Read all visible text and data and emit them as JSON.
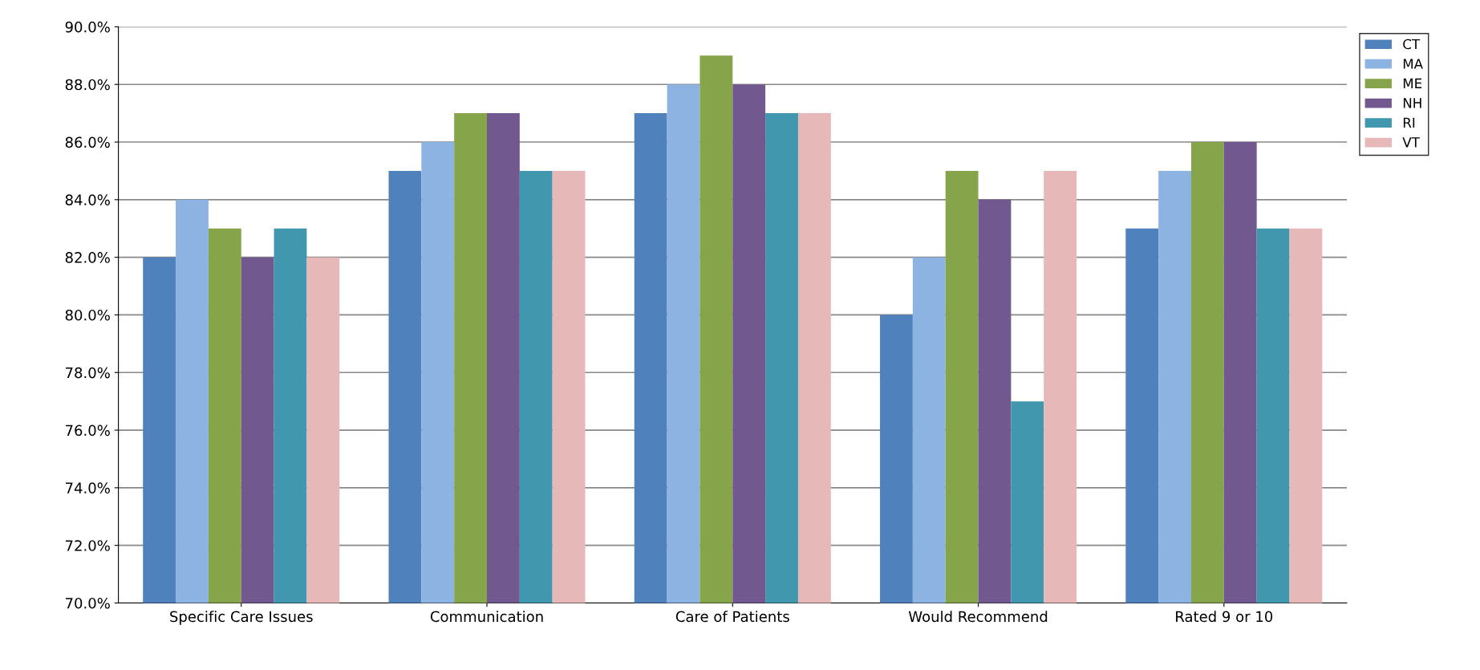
{
  "chart_data": {
    "type": "bar",
    "categories": [
      "Specific Care Issues",
      "Communication",
      "Care of Patients",
      "Would Recommend",
      "Rated 9 or 10"
    ],
    "series": [
      {
        "name": "CT",
        "color": "#4f81bd",
        "values": [
          82,
          85,
          87,
          80,
          83
        ]
      },
      {
        "name": "MA",
        "color": "#8db3e2",
        "values": [
          84,
          86,
          88,
          82,
          85
        ]
      },
      {
        "name": "ME",
        "color": "#86a44a",
        "values": [
          83,
          87,
          89,
          85,
          86
        ]
      },
      {
        "name": "NH",
        "color": "#71588f",
        "values": [
          82,
          87,
          88,
          84,
          86
        ]
      },
      {
        "name": "RI",
        "color": "#4197ae",
        "values": [
          83,
          85,
          87,
          77,
          83
        ]
      },
      {
        "name": "VT",
        "color": "#e6b9b8",
        "values": [
          82,
          85,
          87,
          85,
          83
        ]
      }
    ],
    "ylim": [
      70,
      90
    ],
    "yticks": [
      {
        "value": 70,
        "label": "70.0%"
      },
      {
        "value": 72,
        "label": "72.0%"
      },
      {
        "value": 74,
        "label": "74.0%"
      },
      {
        "value": 76,
        "label": "76.0%"
      },
      {
        "value": 78,
        "label": "78.0%"
      },
      {
        "value": 80,
        "label": "80.0%"
      },
      {
        "value": 82,
        "label": "82.0%"
      },
      {
        "value": 84,
        "label": "84.0%"
      },
      {
        "value": 86,
        "label": "86.0%"
      },
      {
        "value": 88,
        "label": "88.0%"
      },
      {
        "value": 90,
        "label": "90.0%"
      }
    ],
    "grid": "y",
    "legend": "top right"
  }
}
